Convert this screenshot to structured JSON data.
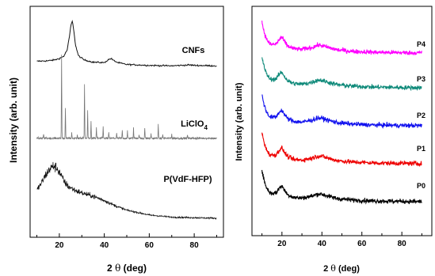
{
  "chart_data": [
    {
      "type": "line",
      "panel": "left",
      "xlabel_main": "2",
      "xlabel_theta": "θ",
      "xlabel_unit": "(deg)",
      "ylabel": "Intensity (arb. unit)",
      "xlim": [
        7,
        93
      ],
      "xticks": [
        20,
        40,
        60,
        80
      ],
      "yticks": false,
      "series": [
        {
          "name": "CNFs",
          "color": "#111111",
          "x": [
            10,
            15,
            18,
            20,
            22,
            23.5,
            24.5,
            25.2,
            25.8,
            26.4,
            27.2,
            28.5,
            31,
            35,
            40,
            42,
            43,
            44,
            46,
            50,
            60,
            70,
            78,
            80,
            90
          ],
          "y": [
            0.13,
            0.14,
            0.16,
            0.19,
            0.24,
            0.38,
            0.67,
            0.93,
            1.0,
            0.82,
            0.48,
            0.25,
            0.16,
            0.11,
            0.1,
            0.17,
            0.19,
            0.15,
            0.1,
            0.06,
            0.04,
            0.03,
            0.05,
            0.04,
            0.03
          ]
        },
        {
          "name": "LiClO",
          "name_subscript": "4",
          "color": "#777777",
          "baseline": 0.03,
          "peaks": [
            {
              "x": 13,
              "h": 0.05
            },
            {
              "x": 21,
              "h": 1.0
            },
            {
              "x": 22.7,
              "h": 0.36
            },
            {
              "x": 25.5,
              "h": 0.07
            },
            {
              "x": 28,
              "h": 0.05
            },
            {
              "x": 31.2,
              "h": 0.66
            },
            {
              "x": 32.6,
              "h": 0.33
            },
            {
              "x": 34.1,
              "h": 0.2
            },
            {
              "x": 36.5,
              "h": 0.13
            },
            {
              "x": 39.5,
              "h": 0.14
            },
            {
              "x": 42,
              "h": 0.07
            },
            {
              "x": 45.5,
              "h": 0.06
            },
            {
              "x": 48,
              "h": 0.1
            },
            {
              "x": 50.3,
              "h": 0.08
            },
            {
              "x": 53,
              "h": 0.12
            },
            {
              "x": 55.5,
              "h": 0.05
            },
            {
              "x": 58,
              "h": 0.13
            },
            {
              "x": 60.8,
              "h": 0.06
            },
            {
              "x": 64,
              "h": 0.17
            },
            {
              "x": 66,
              "h": 0.05
            },
            {
              "x": 70,
              "h": 0.05
            },
            {
              "x": 77,
              "h": 0.04
            }
          ]
        },
        {
          "name": "P(VdF-HFP)",
          "color": "#111111",
          "x": [
            10,
            12,
            14,
            16,
            17.5,
            19,
            20.5,
            22,
            24,
            27,
            30,
            35,
            40,
            45,
            50,
            60,
            70,
            80,
            90
          ],
          "y": [
            0.55,
            0.68,
            0.84,
            0.96,
            1.0,
            0.96,
            0.85,
            0.72,
            0.62,
            0.55,
            0.5,
            0.44,
            0.36,
            0.26,
            0.18,
            0.09,
            0.05,
            0.04,
            0.03
          ]
        }
      ]
    },
    {
      "type": "line",
      "panel": "right",
      "xlabel_main": "2",
      "xlabel_theta": "θ",
      "xlabel_unit": "(deg)",
      "ylabel": "Intensity (arb. unit)",
      "xlim": [
        5,
        95
      ],
      "xticks": [
        20,
        40,
        60,
        80
      ],
      "yticks": false,
      "series": [
        {
          "name": "P4",
          "color": "#ff00ff"
        },
        {
          "name": "P3",
          "color": "#0f8a7a"
        },
        {
          "name": "P2",
          "color": "#1010ee"
        },
        {
          "name": "P1",
          "color": "#ee0000"
        },
        {
          "name": "P0",
          "color": "#000000"
        }
      ],
      "common_profile": {
        "x": [
          10,
          11,
          12,
          14,
          17,
          19,
          20,
          21.5,
          23,
          26,
          30,
          35,
          38,
          40,
          43,
          48,
          55,
          65,
          75,
          85,
          90
        ],
        "y": [
          1.0,
          0.72,
          0.5,
          0.3,
          0.3,
          0.48,
          0.52,
          0.36,
          0.24,
          0.16,
          0.14,
          0.2,
          0.27,
          0.26,
          0.2,
          0.12,
          0.08,
          0.05,
          0.04,
          0.03,
          0.03
        ]
      }
    }
  ]
}
